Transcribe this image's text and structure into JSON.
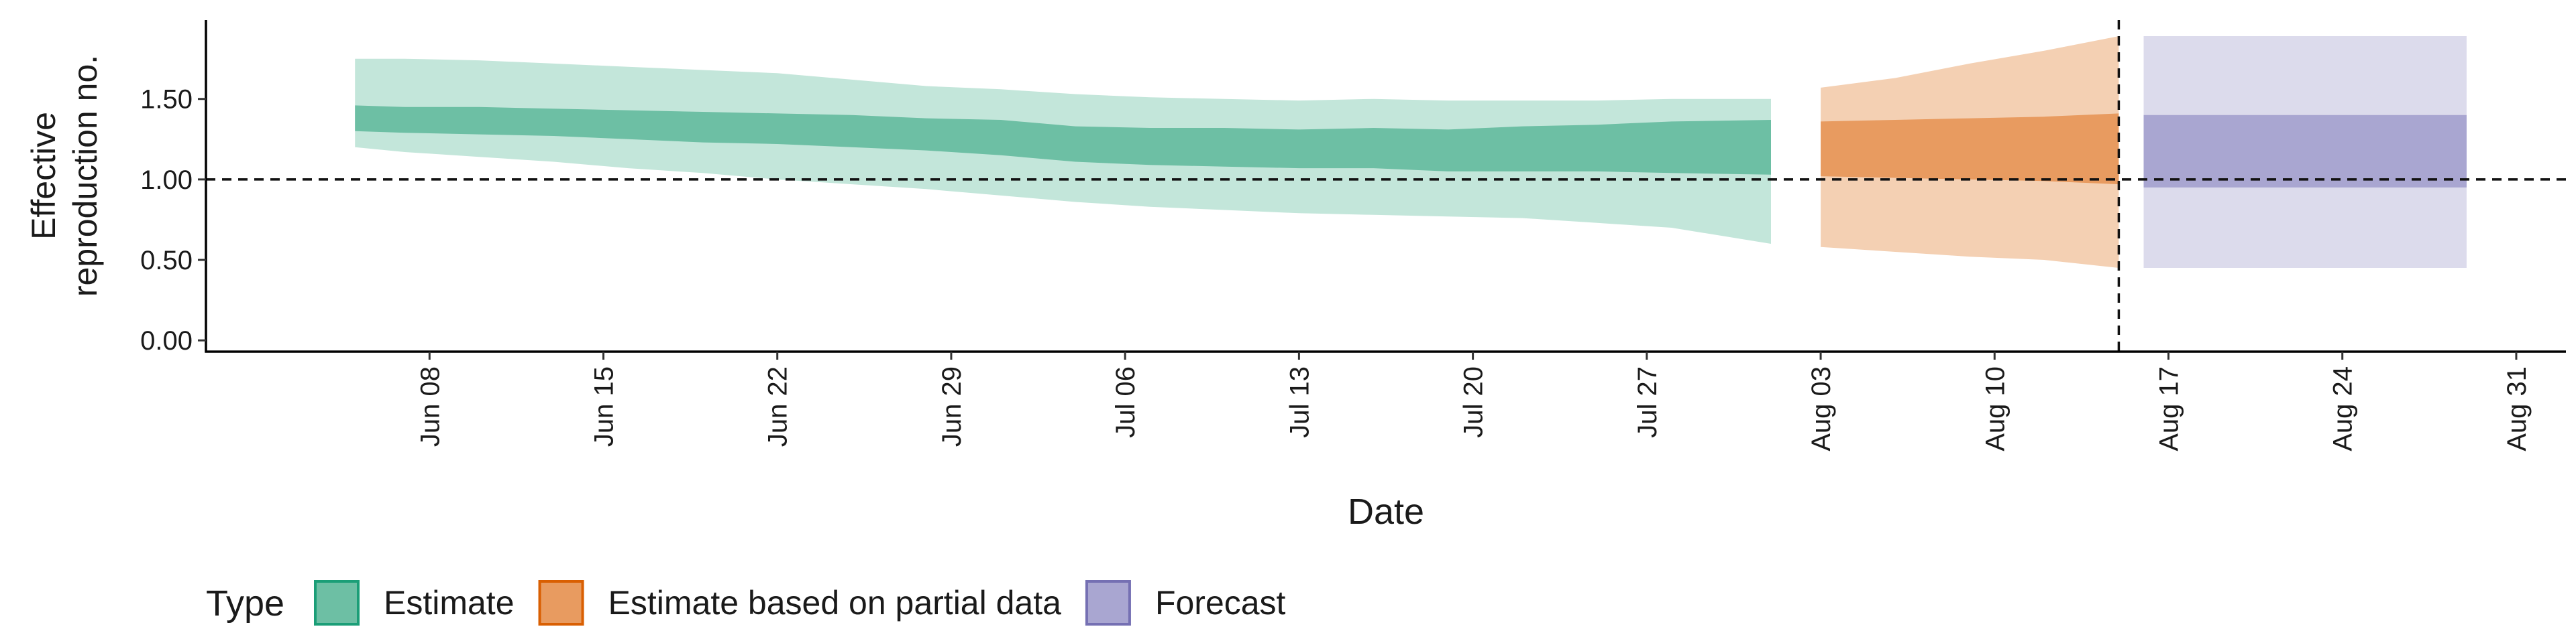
{
  "chart_data": {
    "type": "area",
    "xlabel": "Date",
    "ylabel_lines": [
      "Effective",
      "reproduction no."
    ],
    "ylim": [
      -0.07,
      1.99
    ],
    "y_ticks": [
      0.0,
      0.5,
      1.0,
      1.5
    ],
    "y_tick_labels": [
      "0.00",
      "0.50",
      "1.00",
      "1.50"
    ],
    "x_range": [
      "2020-05-30",
      "2020-09-02"
    ],
    "x_ticks": [
      "2020-06-08",
      "2020-06-15",
      "2020-06-22",
      "2020-06-29",
      "2020-07-06",
      "2020-07-13",
      "2020-07-20",
      "2020-07-27",
      "2020-08-03",
      "2020-08-10",
      "2020-08-17",
      "2020-08-24",
      "2020-08-31"
    ],
    "x_tick_labels": [
      "Jun 08",
      "Jun 15",
      "Jun 22",
      "Jun 29",
      "Jul 06",
      "Jul 13",
      "Jul 20",
      "Jul 27",
      "Aug 03",
      "Aug 10",
      "Aug 17",
      "Aug 24",
      "Aug 31"
    ],
    "reference_hline": 1.0,
    "reference_vline": "2020-08-15",
    "grid": false,
    "legend": {
      "title": "Type",
      "position": "bottom-left",
      "items": [
        {
          "label": "Estimate",
          "fill": "#6DBFA4",
          "border": "#1B9E77"
        },
        {
          "label": "Estimate based on partial data",
          "fill": "#E89B60",
          "border": "#D95F02"
        },
        {
          "label": "Forecast",
          "fill": "#A9A6D1",
          "border": "#7570B3"
        }
      ]
    },
    "series": [
      {
        "name": "Estimate",
        "fill_inner": "#6DBFA4",
        "fill_outer": "#C3E6DA",
        "dates": [
          "2020-06-05",
          "2020-06-07",
          "2020-06-10",
          "2020-06-13",
          "2020-06-16",
          "2020-06-19",
          "2020-06-22",
          "2020-06-25",
          "2020-06-28",
          "2020-07-01",
          "2020-07-04",
          "2020-07-07",
          "2020-07-10",
          "2020-07-13",
          "2020-07-16",
          "2020-07-19",
          "2020-07-22",
          "2020-07-25",
          "2020-07-28",
          "2020-08-01"
        ],
        "upper_outer": [
          1.75,
          1.75,
          1.74,
          1.72,
          1.7,
          1.68,
          1.66,
          1.62,
          1.58,
          1.56,
          1.53,
          1.51,
          1.5,
          1.49,
          1.5,
          1.49,
          1.49,
          1.49,
          1.5,
          1.5
        ],
        "upper_inner": [
          1.46,
          1.45,
          1.45,
          1.44,
          1.43,
          1.42,
          1.41,
          1.4,
          1.38,
          1.37,
          1.33,
          1.32,
          1.32,
          1.31,
          1.32,
          1.31,
          1.33,
          1.34,
          1.36,
          1.37
        ],
        "lower_inner": [
          1.3,
          1.29,
          1.28,
          1.27,
          1.25,
          1.23,
          1.22,
          1.2,
          1.18,
          1.15,
          1.11,
          1.09,
          1.08,
          1.07,
          1.07,
          1.05,
          1.05,
          1.05,
          1.04,
          1.03
        ],
        "lower_outer": [
          1.2,
          1.17,
          1.14,
          1.11,
          1.07,
          1.04,
          1.0,
          0.97,
          0.94,
          0.9,
          0.86,
          0.83,
          0.81,
          0.79,
          0.78,
          0.77,
          0.76,
          0.73,
          0.7,
          0.6
        ]
      },
      {
        "name": "Estimate based on partial data",
        "fill_inner": "#E89B60",
        "fill_outer": "#F4D0B3",
        "dates": [
          "2020-08-03",
          "2020-08-06",
          "2020-08-09",
          "2020-08-12",
          "2020-08-15"
        ],
        "upper_outer": [
          1.57,
          1.63,
          1.72,
          1.8,
          1.89
        ],
        "upper_inner": [
          1.36,
          1.37,
          1.38,
          1.39,
          1.41
        ],
        "lower_inner": [
          1.02,
          1.01,
          1.0,
          0.99,
          0.97
        ],
        "lower_outer": [
          0.58,
          0.55,
          0.52,
          0.5,
          0.45
        ]
      },
      {
        "name": "Forecast",
        "fill_inner": "#A9A6D1",
        "fill_outer": "#DCDBEC",
        "dates": [
          "2020-08-16",
          "2020-08-29"
        ],
        "upper_outer": [
          1.89,
          1.89
        ],
        "upper_inner": [
          1.4,
          1.4
        ],
        "lower_inner": [
          0.95,
          0.95
        ],
        "lower_outer": [
          0.45,
          0.45
        ]
      }
    ]
  }
}
